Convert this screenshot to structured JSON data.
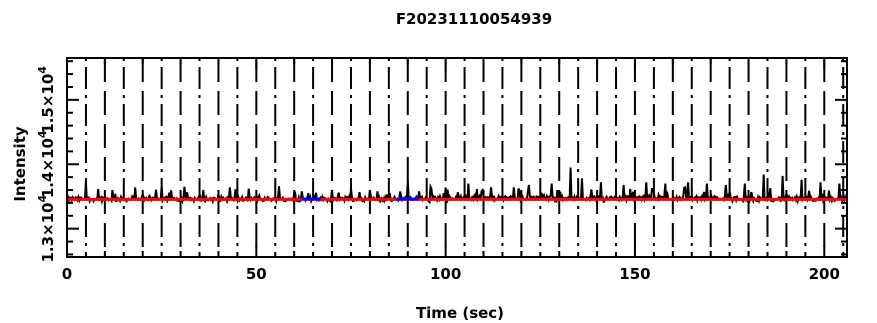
{
  "chart_data": {
    "type": "line",
    "title": "F20231110054939",
    "xlabel": "Time (sec)",
    "ylabel": "Intensity",
    "xlim": [
      0,
      206
    ],
    "ylim": [
      12560,
      15650
    ],
    "x_ticks": [
      0,
      50,
      100,
      150,
      200
    ],
    "x_tick_labels": [
      "0",
      "50",
      "100",
      "150",
      "200"
    ],
    "y_ticks": [
      13000,
      14000,
      15000
    ],
    "y_tick_labels": [
      "1.3×10",
      "1.4×10",
      "1.5×10"
    ],
    "y_tick_exponent": "4",
    "series": [
      {
        "color": "#000000",
        "description": "measured intensity",
        "baseline": 13460,
        "noise_amplitude": 35,
        "spikes": [
          [
            5,
            13720
          ],
          [
            12,
            13600
          ],
          [
            18,
            13640
          ],
          [
            25,
            13660
          ],
          [
            31,
            13650
          ],
          [
            36,
            13600
          ],
          [
            43,
            13640
          ],
          [
            48,
            13620
          ],
          [
            56,
            13660
          ],
          [
            62,
            13580
          ],
          [
            70,
            13600
          ],
          [
            75,
            13620
          ],
          [
            80,
            13600
          ],
          [
            90,
            13750
          ],
          [
            96,
            13650
          ],
          [
            100,
            13640
          ],
          [
            106,
            13700
          ],
          [
            112,
            13640
          ],
          [
            118,
            13640
          ],
          [
            122,
            13680
          ],
          [
            128,
            13700
          ],
          [
            133,
            13950
          ],
          [
            136,
            13780
          ],
          [
            141,
            13720
          ],
          [
            147,
            13680
          ],
          [
            153,
            13720
          ],
          [
            158,
            13700
          ],
          [
            164,
            13720
          ],
          [
            169,
            13700
          ],
          [
            174,
            13680
          ],
          [
            179,
            13700
          ],
          [
            184,
            13840
          ],
          [
            189,
            13820
          ],
          [
            194,
            13760
          ],
          [
            199,
            13720
          ],
          [
            204,
            13700
          ]
        ]
      },
      {
        "color": "#ff0000",
        "description": "baseline fit",
        "points": [
          [
            0,
            13455
          ],
          [
            206,
            13455
          ]
        ]
      },
      {
        "color": "#0000ff",
        "description": "marked segments",
        "segments": [
          [
            [
              62,
              13460
            ],
            [
              67,
              13460
            ]
          ],
          [
            [
              87,
              13460
            ],
            [
              93,
              13460
            ]
          ]
        ]
      }
    ],
    "grid": true,
    "legend": "none"
  }
}
